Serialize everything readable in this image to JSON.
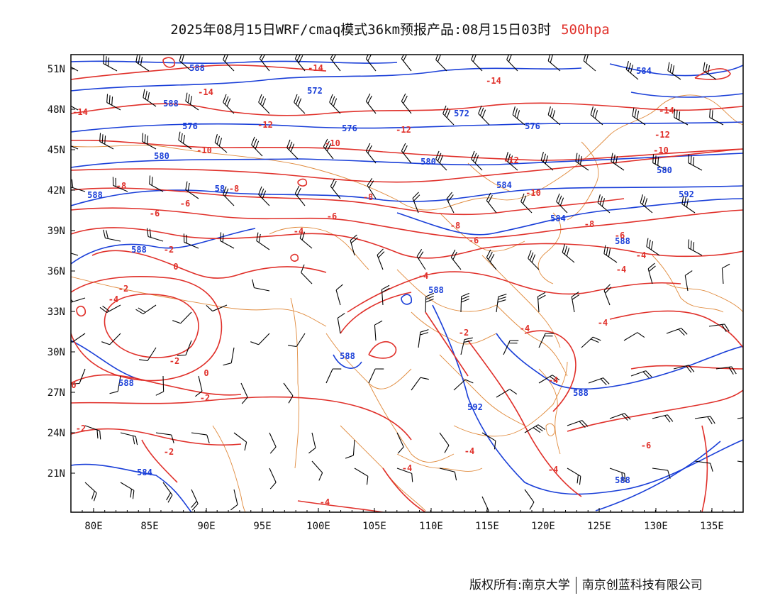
{
  "title": {
    "text": "2025年08月15日WRF/cmaq模式36km预报产品:08月15日03时",
    "level": "500hpa"
  },
  "colors": {
    "temperature": "#e0302a",
    "height": "#1a3fd8",
    "border": "#e08a3c",
    "wind": "#000000"
  },
  "axes": {
    "lon_labels": [
      "80E",
      "85E",
      "90E",
      "95E",
      "100E",
      "105E",
      "110E",
      "115E",
      "120E",
      "125E",
      "130E",
      "135E"
    ],
    "lat_labels": [
      "51N",
      "48N",
      "45N",
      "42N",
      "39N",
      "36N",
      "33N",
      "30N",
      "27N",
      "24N",
      "21N"
    ]
  },
  "height_labels": [
    "588",
    "584",
    "572",
    "588",
    "576",
    "576",
    "572",
    "576",
    "580",
    "580",
    "584",
    "580",
    "588",
    "592",
    "584",
    "588",
    "588",
    "588",
    "588",
    "588",
    "592",
    "588",
    "584",
    "588",
    "58"
  ],
  "temp_labels": [
    "-14",
    "-14",
    "-14",
    "-14",
    "-14",
    "-12",
    "-12",
    "-12",
    "-12",
    "-10",
    "-10",
    "-10",
    "-10",
    "-8",
    "-8",
    "-8",
    "-8",
    "-8",
    "-6",
    "-6",
    "-6",
    "-6",
    "-6",
    "-4",
    "-4",
    "-4",
    "-4",
    "-4",
    "-4",
    "-4",
    "-4",
    "-4",
    "-4",
    "-2",
    "-2",
    "-2",
    "-2",
    "-2",
    "-2",
    "-2",
    "0",
    "0",
    "0",
    "-4",
    "-4",
    "-6"
  ],
  "footer": {
    "left": "版权所有:南京大学",
    "right": "南京创蓝科技有限公司"
  }
}
